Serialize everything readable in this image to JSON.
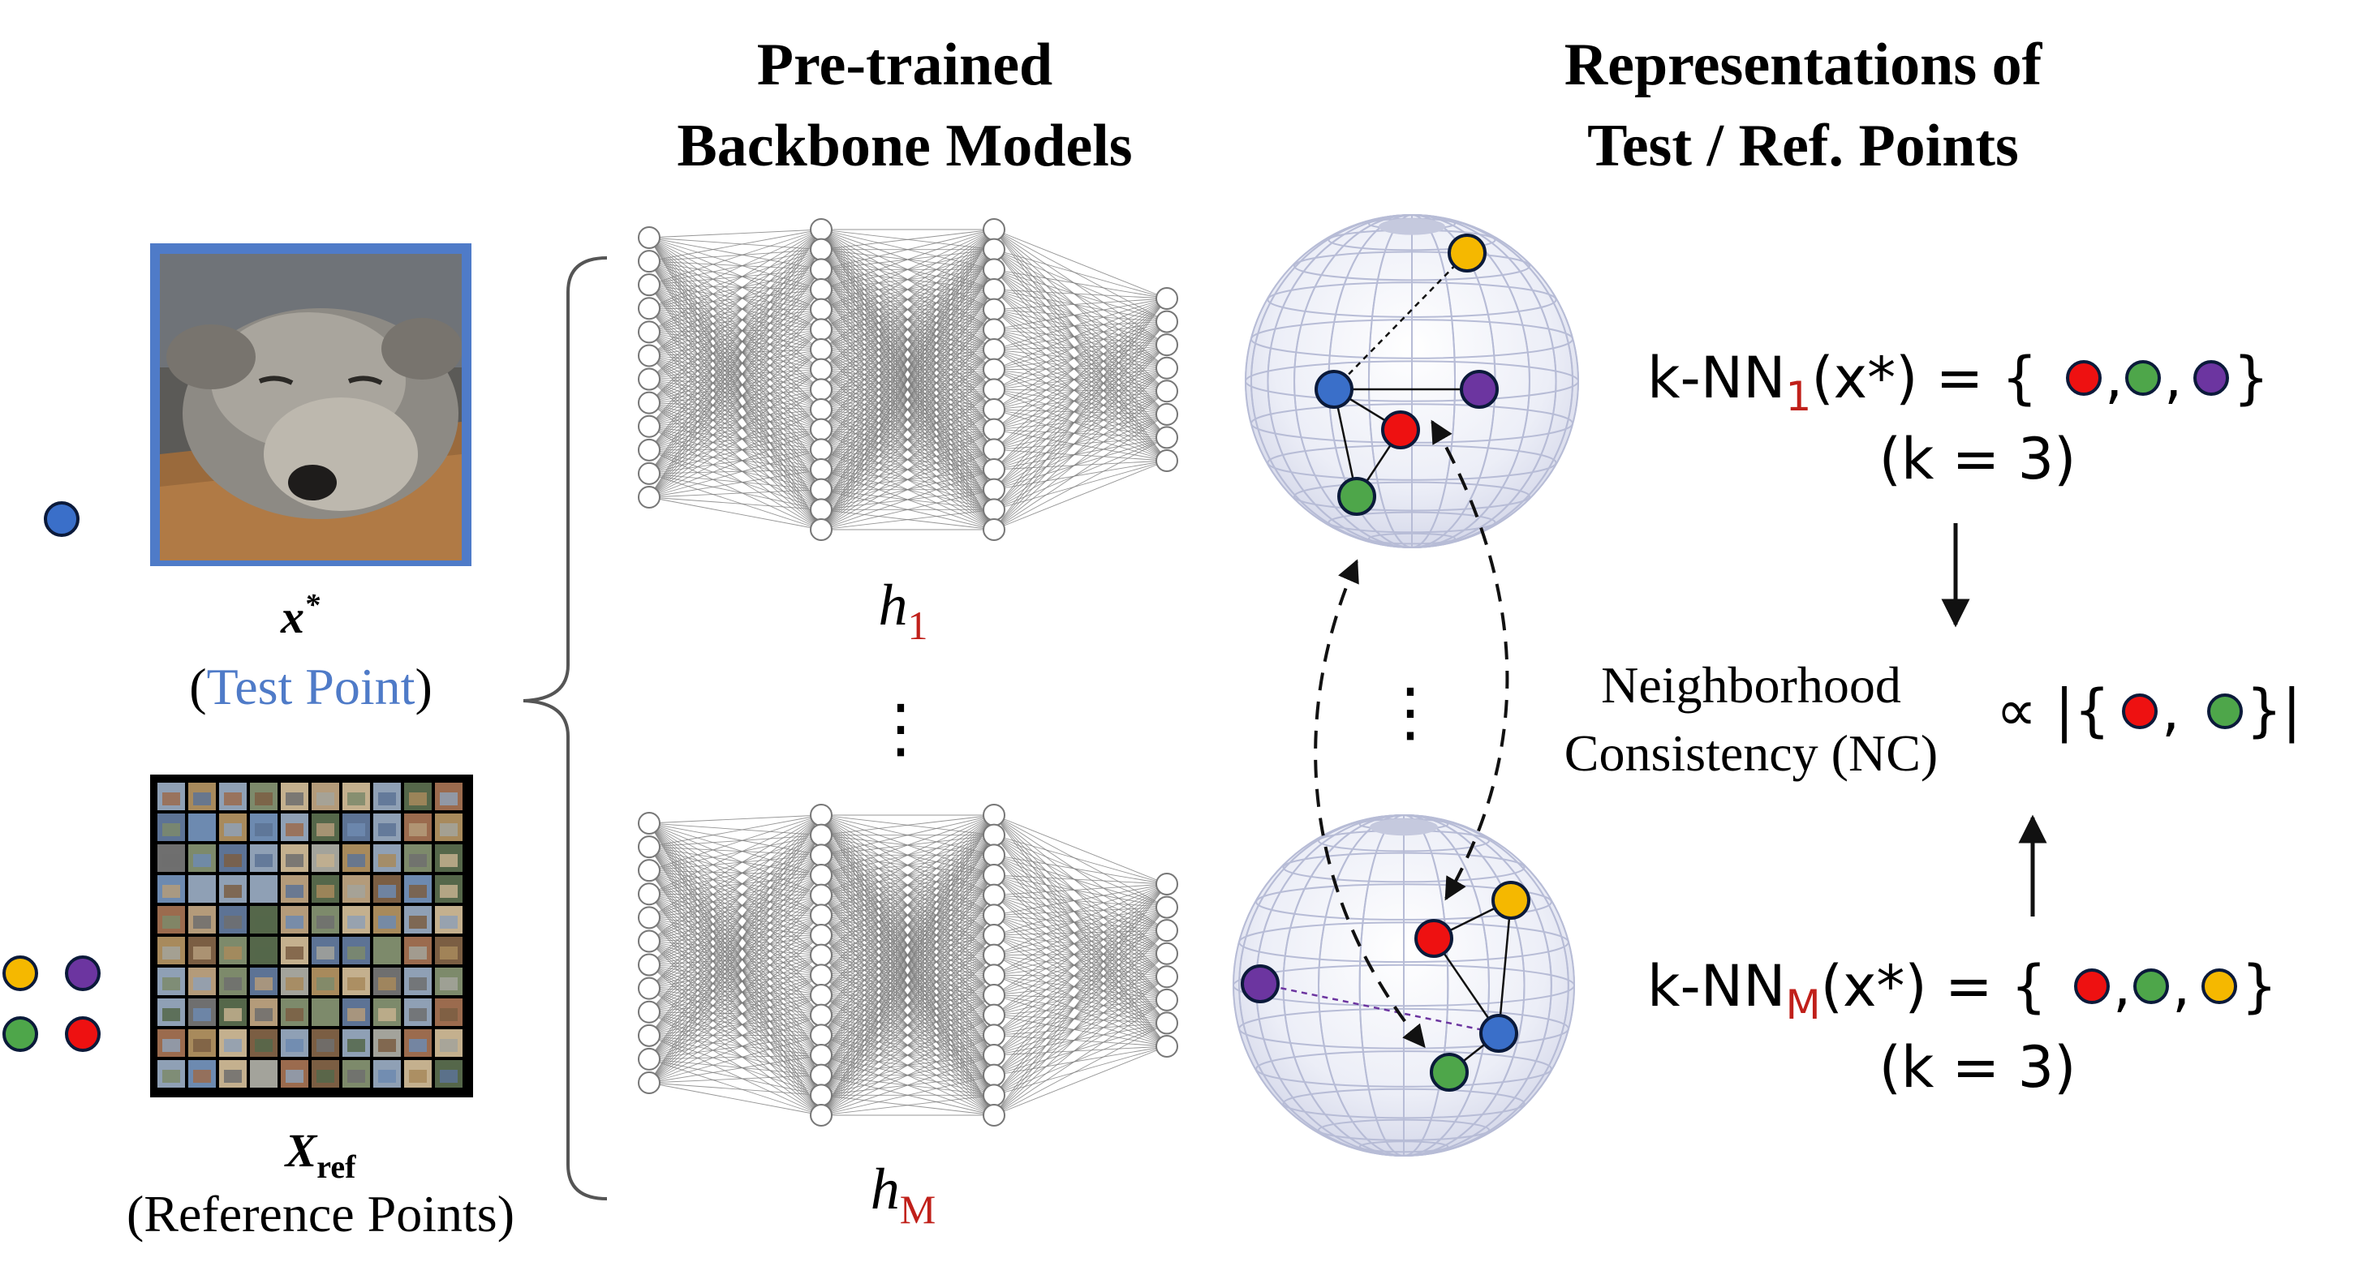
{
  "headers": {
    "backbone_line1": "Pre-trained",
    "backbone_line2": "Backbone Models",
    "repr_line1": "Representations of",
    "repr_line2": "Test / Ref. Points"
  },
  "inputs": {
    "test_symbol": "x",
    "test_sup": "*",
    "test_label_open": "(",
    "test_label_main": "Test Point",
    "test_label_close": ")",
    "ref_symbol": "X",
    "ref_sub": "ref",
    "ref_label": "(Reference Points)"
  },
  "models": {
    "first_symbol": "h",
    "first_sub": "1",
    "last_symbol": "h",
    "last_sub": "M",
    "ellipsis": "⋮"
  },
  "knn": {
    "top_prefix": "k-NN",
    "top_sub": "1",
    "top_args": "(x*) = {",
    "top_close": "}",
    "top_k": "(k = 3)",
    "bottom_prefix": "k-NN",
    "bottom_sub": "M",
    "bottom_args": "(x*) = {",
    "bottom_close": "}",
    "bottom_k": "(k = 3)"
  },
  "nc": {
    "line1": "Neighborhood",
    "line2": "Consistency (NC)",
    "prop": "∝ |{",
    "close": "}|"
  },
  "colors": {
    "blue": "#3a6fc9",
    "red": "#ee1111",
    "green": "#4ea64a",
    "purple": "#6c35a0",
    "yellow": "#f5b800",
    "dark_red": "#c0201a",
    "test_frame": "#4f7bc8"
  }
}
